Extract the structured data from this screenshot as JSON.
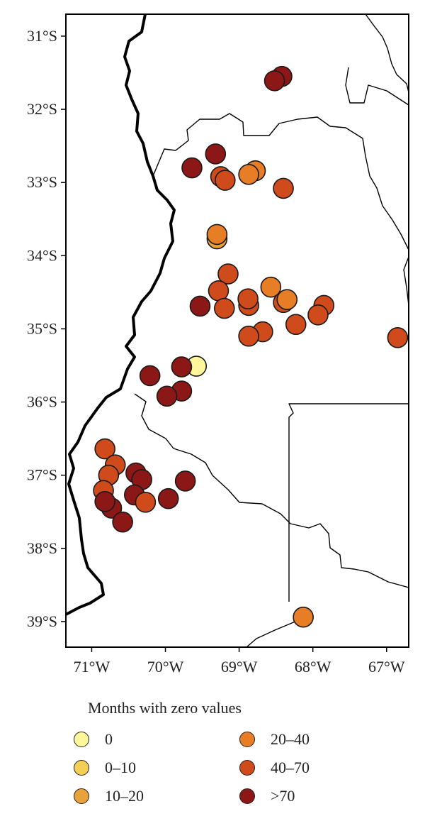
{
  "map": {
    "y_ticks": [
      "31°S",
      "32°S",
      "33°S",
      "34°S",
      "35°S",
      "36°S",
      "37°S",
      "38°S",
      "39°S"
    ],
    "x_ticks": [
      "71°W",
      "70°W",
      "69°W",
      "68°W",
      "67°W"
    ]
  },
  "legend": {
    "title": "Months with zero values",
    "items": [
      {
        "label": "0",
        "color": "#fff79a"
      },
      {
        "label": "20–40",
        "color": "#e77d25"
      },
      {
        "label": "0–10",
        "color": "#f4cf55"
      },
      {
        "label": "40–70",
        "color": "#cf4b1c"
      },
      {
        "label": "10–20",
        "color": "#e8a23b"
      },
      {
        "label": ">70",
        "color": "#8c1717"
      }
    ]
  },
  "chart_data": {
    "type": "scatter",
    "xlabel": "",
    "ylabel": "",
    "xlim": [
      -71.35,
      -66.7
    ],
    "ylim": [
      -39.35,
      -30.7
    ],
    "classes": {
      "0": "#fff79a",
      "0–10": "#f4cf55",
      "10–20": "#e8a23b",
      "20–40": "#e77d25",
      "40–70": "#cf4b1c",
      ">70": "#8c1717"
    },
    "stations": [
      {
        "lon": -68.42,
        "lat": -31.55,
        "class": ">70"
      },
      {
        "lon": -68.52,
        "lat": -31.61,
        "class": ">70"
      },
      {
        "lon": -69.32,
        "lat": -32.61,
        "class": ">70"
      },
      {
        "lon": -69.64,
        "lat": -32.8,
        "class": ">70"
      },
      {
        "lon": -69.25,
        "lat": -32.92,
        "class": "40–70"
      },
      {
        "lon": -69.19,
        "lat": -32.97,
        "class": "40–70"
      },
      {
        "lon": -68.78,
        "lat": -32.84,
        "class": "20–40"
      },
      {
        "lon": -68.87,
        "lat": -32.89,
        "class": "20–40"
      },
      {
        "lon": -68.4,
        "lat": -33.08,
        "class": "40–70"
      },
      {
        "lon": -69.3,
        "lat": -33.77,
        "class": "10–20"
      },
      {
        "lon": -69.3,
        "lat": -33.71,
        "class": "20–40"
      },
      {
        "lon": -69.15,
        "lat": -34.25,
        "class": "40–70"
      },
      {
        "lon": -69.28,
        "lat": -34.48,
        "class": "40–70"
      },
      {
        "lon": -68.57,
        "lat": -34.43,
        "class": "20–40"
      },
      {
        "lon": -68.87,
        "lat": -34.68,
        "class": "40–70"
      },
      {
        "lon": -68.88,
        "lat": -34.59,
        "class": "40–70"
      },
      {
        "lon": -68.4,
        "lat": -34.64,
        "class": "40–70"
      },
      {
        "lon": -68.35,
        "lat": -34.6,
        "class": "20–40"
      },
      {
        "lon": -69.2,
        "lat": -34.72,
        "class": "40–70"
      },
      {
        "lon": -69.53,
        "lat": -34.69,
        "class": ">70"
      },
      {
        "lon": -67.85,
        "lat": -34.68,
        "class": "40–70"
      },
      {
        "lon": -67.93,
        "lat": -34.81,
        "class": "40–70"
      },
      {
        "lon": -68.23,
        "lat": -34.94,
        "class": "40–70"
      },
      {
        "lon": -68.68,
        "lat": -35.04,
        "class": "40–70"
      },
      {
        "lon": -68.87,
        "lat": -35.1,
        "class": "40–70"
      },
      {
        "lon": -66.85,
        "lat": -35.12,
        "class": "40–70"
      },
      {
        "lon": -69.58,
        "lat": -35.51,
        "class": "0"
      },
      {
        "lon": -69.78,
        "lat": -35.52,
        "class": ">70"
      },
      {
        "lon": -70.21,
        "lat": -35.64,
        "class": ">70"
      },
      {
        "lon": -69.78,
        "lat": -35.85,
        "class": ">70"
      },
      {
        "lon": -69.98,
        "lat": -35.92,
        "class": ">70"
      },
      {
        "lon": -70.82,
        "lat": -36.64,
        "class": "40–70"
      },
      {
        "lon": -70.68,
        "lat": -36.86,
        "class": "40–70"
      },
      {
        "lon": -70.77,
        "lat": -37.0,
        "class": "40–70"
      },
      {
        "lon": -70.4,
        "lat": -36.97,
        "class": ">70"
      },
      {
        "lon": -70.32,
        "lat": -37.06,
        "class": ">70"
      },
      {
        "lon": -69.73,
        "lat": -37.08,
        "class": ">70"
      },
      {
        "lon": -70.84,
        "lat": -37.21,
        "class": "40–70"
      },
      {
        "lon": -70.42,
        "lat": -37.27,
        "class": ">70"
      },
      {
        "lon": -69.96,
        "lat": -37.32,
        "class": ">70"
      },
      {
        "lon": -70.27,
        "lat": -37.37,
        "class": "40–70"
      },
      {
        "lon": -70.73,
        "lat": -37.45,
        "class": ">70"
      },
      {
        "lon": -70.82,
        "lat": -37.36,
        "class": ">70"
      },
      {
        "lon": -70.58,
        "lat": -37.64,
        "class": ">70"
      },
      {
        "lon": -68.13,
        "lat": -38.94,
        "class": "20–40"
      }
    ]
  }
}
